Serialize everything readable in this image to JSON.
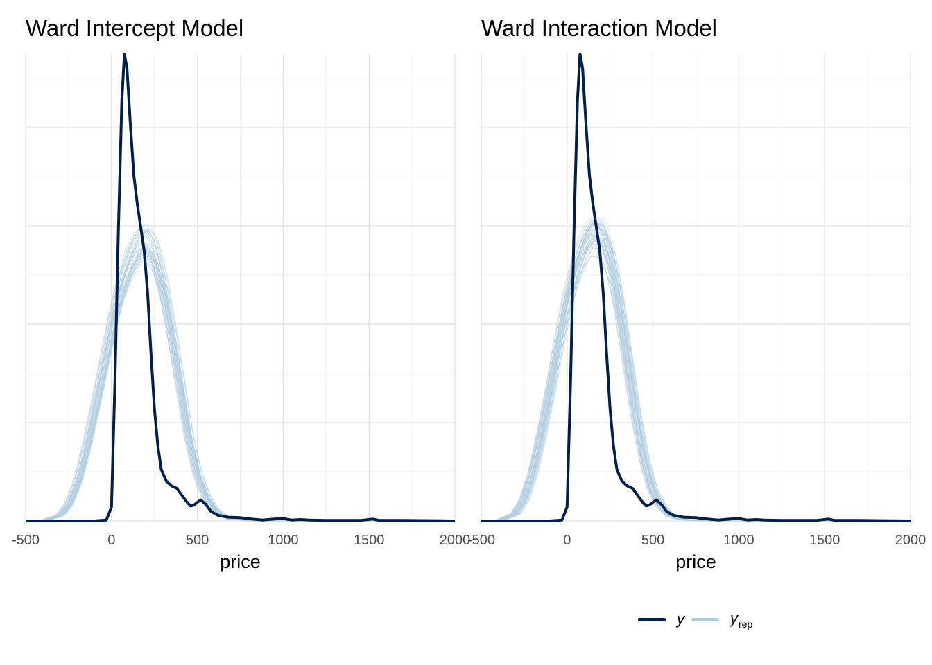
{
  "chart_data": [
    {
      "type": "line",
      "title": "Ward Intercept Model",
      "xlabel": "price",
      "ylabel": "",
      "xlim": [
        -500,
        2000
      ],
      "xticks": [
        "-500",
        "0",
        "500",
        "1000",
        "1500",
        "2000"
      ],
      "y_tick_labels_shown": false,
      "grid": true,
      "series": [
        {
          "name": "y",
          "role": "observed",
          "color": "#011f4b",
          "points": [
            [
              -500,
              0
            ],
            [
              -100,
              0
            ],
            [
              -30,
              0.002
            ],
            [
              0,
              0.03
            ],
            [
              20,
              0.3
            ],
            [
              40,
              0.62
            ],
            [
              60,
              0.9
            ],
            [
              75,
              1.0
            ],
            [
              90,
              0.97
            ],
            [
              110,
              0.85
            ],
            [
              130,
              0.74
            ],
            [
              150,
              0.68
            ],
            [
              170,
              0.63
            ],
            [
              190,
              0.58
            ],
            [
              210,
              0.49
            ],
            [
              230,
              0.36
            ],
            [
              250,
              0.24
            ],
            [
              270,
              0.16
            ],
            [
              290,
              0.11
            ],
            [
              320,
              0.085
            ],
            [
              350,
              0.075
            ],
            [
              380,
              0.07
            ],
            [
              410,
              0.055
            ],
            [
              440,
              0.04
            ],
            [
              460,
              0.032
            ],
            [
              480,
              0.034
            ],
            [
              500,
              0.04
            ],
            [
              520,
              0.045
            ],
            [
              550,
              0.035
            ],
            [
              580,
              0.02
            ],
            [
              620,
              0.012
            ],
            [
              680,
              0.008
            ],
            [
              750,
              0.007
            ],
            [
              820,
              0.004
            ],
            [
              880,
              0.002
            ],
            [
              950,
              0.004
            ],
            [
              1000,
              0.005
            ],
            [
              1050,
              0.002
            ],
            [
              1100,
              0.003
            ],
            [
              1150,
              0.002
            ],
            [
              1250,
              0.001
            ],
            [
              1450,
              0.001
            ],
            [
              1520,
              0.004
            ],
            [
              1560,
              0.001
            ],
            [
              1700,
              0.001
            ],
            [
              2000,
              0
            ]
          ]
        },
        {
          "name": "y_rep",
          "role": "replicated draws",
          "color": "#b3cde0",
          "points": [
            [
              -500,
              0
            ],
            [
              -400,
              0
            ],
            [
              -300,
              0.012
            ],
            [
              -250,
              0.035
            ],
            [
              -200,
              0.08
            ],
            [
              -150,
              0.15
            ],
            [
              -100,
              0.235
            ],
            [
              -50,
              0.325
            ],
            [
              0,
              0.415
            ],
            [
              50,
              0.495
            ],
            [
              100,
              0.55
            ],
            [
              150,
              0.585
            ],
            [
              200,
              0.595
            ],
            [
              250,
              0.57
            ],
            [
              300,
              0.5
            ],
            [
              350,
              0.4
            ],
            [
              400,
              0.29
            ],
            [
              450,
              0.18
            ],
            [
              500,
              0.1
            ],
            [
              550,
              0.052
            ],
            [
              600,
              0.024
            ],
            [
              650,
              0.01
            ],
            [
              700,
              0.004
            ],
            [
              800,
              0.001
            ],
            [
              900,
              0
            ],
            [
              2000,
              0
            ]
          ]
        }
      ]
    },
    {
      "type": "line",
      "title": "Ward Interaction Model",
      "xlabel": "price",
      "ylabel": "",
      "xlim": [
        -500,
        2000
      ],
      "xticks": [
        "-500",
        "0",
        "500",
        "1000",
        "1500",
        "2000"
      ],
      "y_tick_labels_shown": false,
      "grid": true,
      "series": [
        {
          "name": "y",
          "role": "observed",
          "color": "#011f4b",
          "points": [
            [
              -500,
              0
            ],
            [
              -100,
              0
            ],
            [
              -30,
              0.002
            ],
            [
              0,
              0.03
            ],
            [
              20,
              0.3
            ],
            [
              40,
              0.62
            ],
            [
              60,
              0.9
            ],
            [
              75,
              1.0
            ],
            [
              90,
              0.97
            ],
            [
              110,
              0.85
            ],
            [
              130,
              0.74
            ],
            [
              150,
              0.68
            ],
            [
              170,
              0.63
            ],
            [
              190,
              0.58
            ],
            [
              210,
              0.49
            ],
            [
              230,
              0.36
            ],
            [
              250,
              0.24
            ],
            [
              270,
              0.16
            ],
            [
              290,
              0.11
            ],
            [
              320,
              0.085
            ],
            [
              350,
              0.075
            ],
            [
              380,
              0.07
            ],
            [
              410,
              0.055
            ],
            [
              440,
              0.04
            ],
            [
              460,
              0.032
            ],
            [
              480,
              0.034
            ],
            [
              500,
              0.04
            ],
            [
              520,
              0.045
            ],
            [
              550,
              0.035
            ],
            [
              580,
              0.02
            ],
            [
              620,
              0.012
            ],
            [
              680,
              0.008
            ],
            [
              750,
              0.007
            ],
            [
              820,
              0.004
            ],
            [
              880,
              0.002
            ],
            [
              950,
              0.004
            ],
            [
              1000,
              0.005
            ],
            [
              1050,
              0.002
            ],
            [
              1100,
              0.003
            ],
            [
              1150,
              0.002
            ],
            [
              1250,
              0.001
            ],
            [
              1450,
              0.001
            ],
            [
              1520,
              0.004
            ],
            [
              1560,
              0.001
            ],
            [
              1700,
              0.001
            ],
            [
              2000,
              0
            ]
          ]
        },
        {
          "name": "y_rep",
          "role": "replicated draws",
          "color": "#b3cde0",
          "points": [
            [
              -500,
              0
            ],
            [
              -400,
              0
            ],
            [
              -300,
              0.015
            ],
            [
              -250,
              0.045
            ],
            [
              -200,
              0.1
            ],
            [
              -150,
              0.18
            ],
            [
              -100,
              0.27
            ],
            [
              -50,
              0.37
            ],
            [
              0,
              0.46
            ],
            [
              50,
              0.53
            ],
            [
              100,
              0.58
            ],
            [
              150,
              0.61
            ],
            [
              200,
              0.605
            ],
            [
              250,
              0.56
            ],
            [
              300,
              0.47
            ],
            [
              350,
              0.35
            ],
            [
              400,
              0.23
            ],
            [
              450,
              0.13
            ],
            [
              500,
              0.065
            ],
            [
              550,
              0.03
            ],
            [
              600,
              0.012
            ],
            [
              650,
              0.005
            ],
            [
              700,
              0.002
            ],
            [
              800,
              0
            ],
            [
              2000,
              0
            ]
          ]
        }
      ]
    }
  ],
  "legend": {
    "position": "bottom-right",
    "items": [
      {
        "label": "y",
        "subscript": "",
        "color": "#011f4b"
      },
      {
        "label": "y",
        "subscript": "rep",
        "color": "#b3cde0"
      }
    ]
  }
}
